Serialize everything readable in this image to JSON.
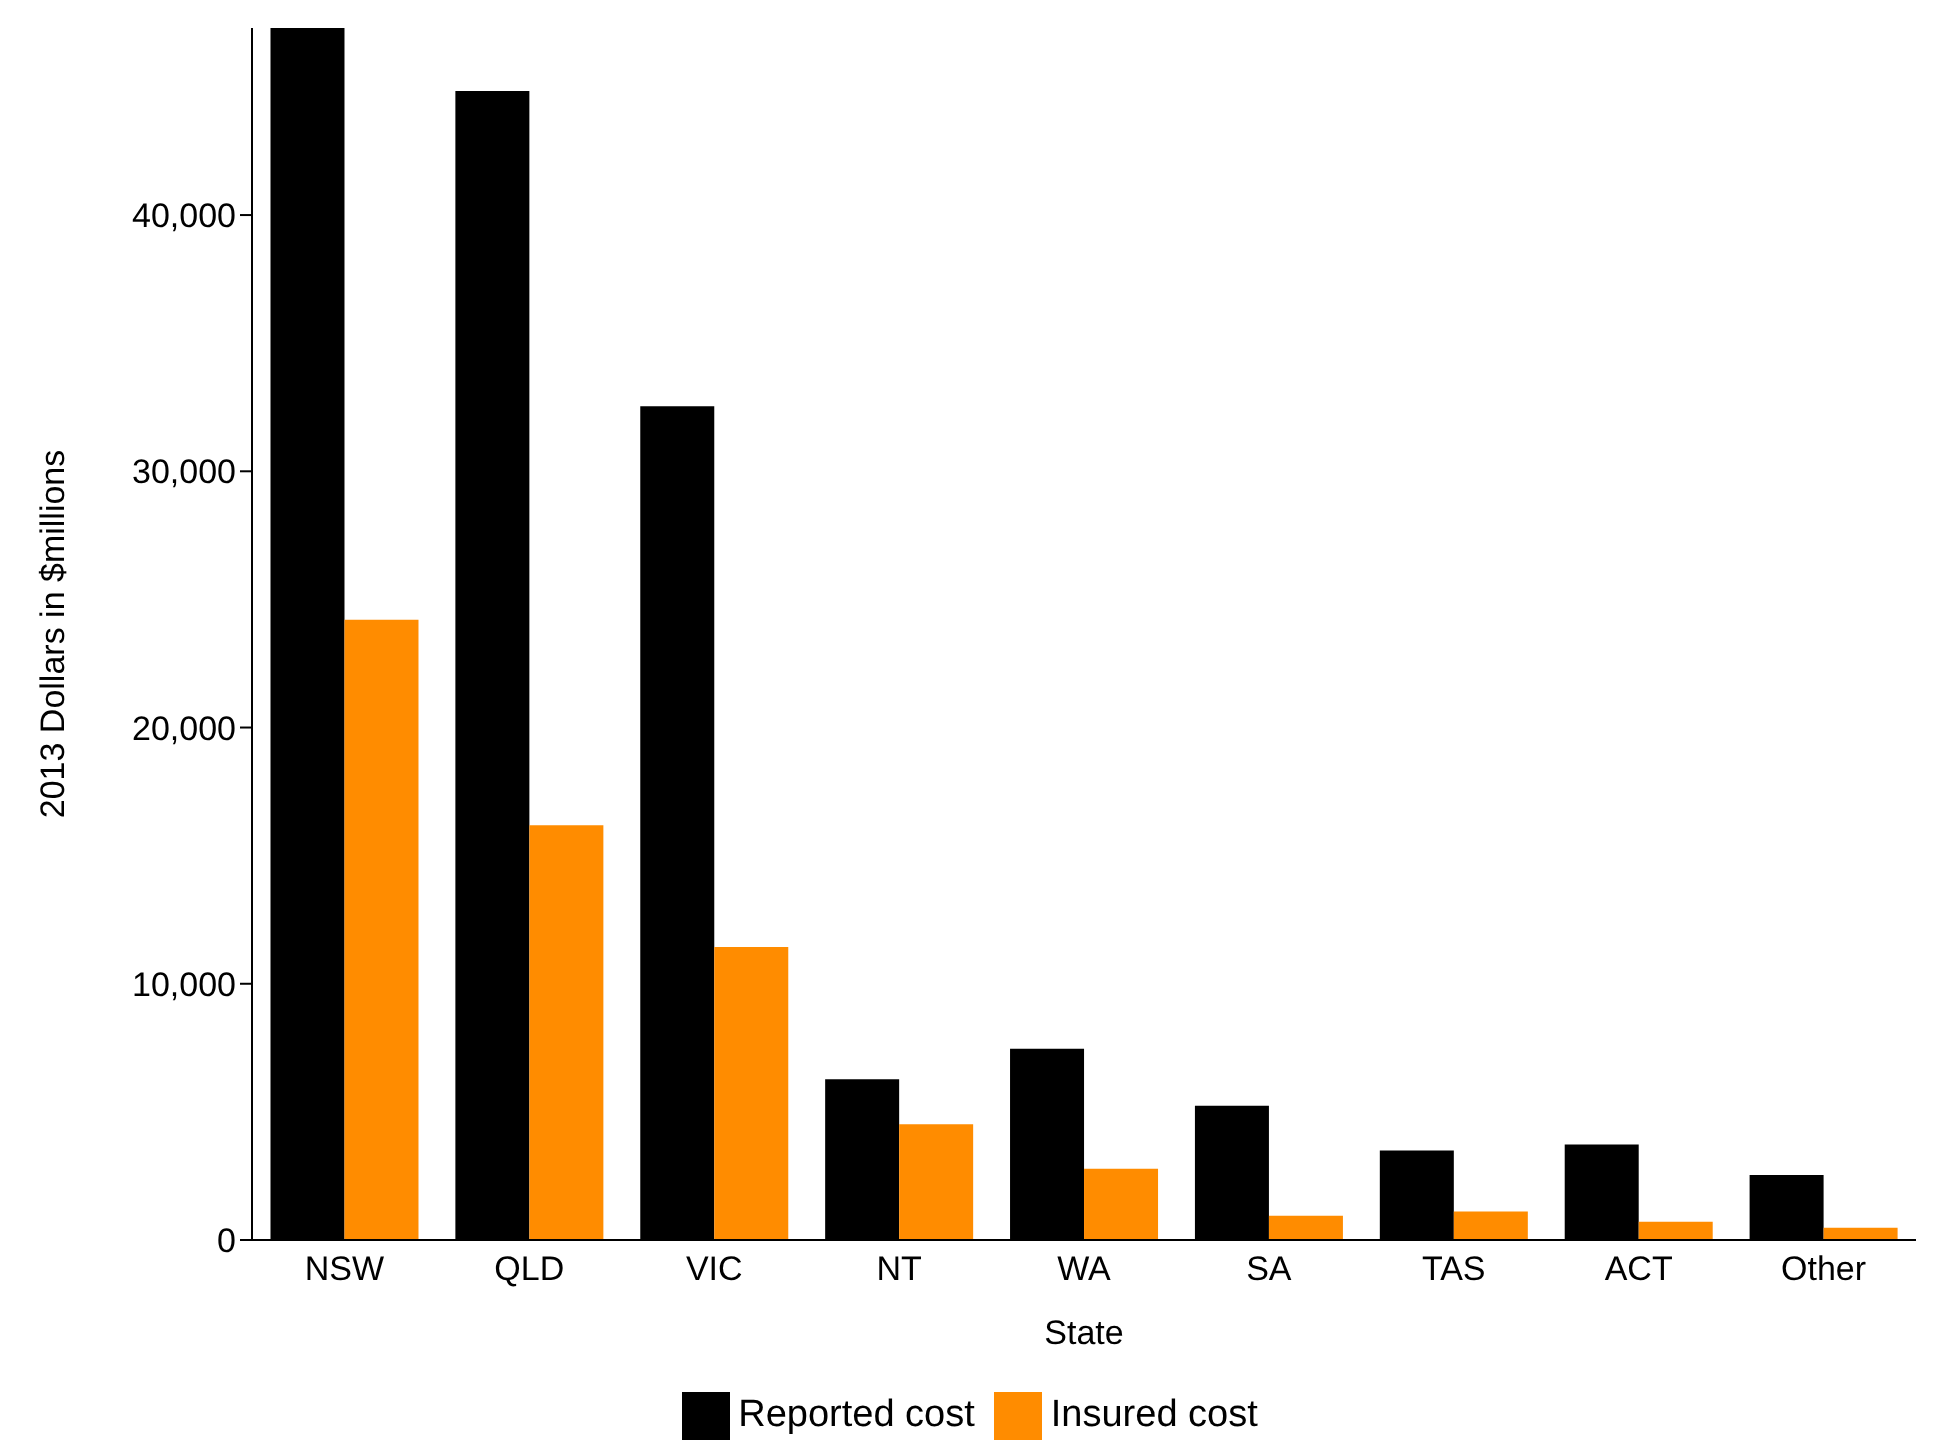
{
  "chart_data": {
    "type": "bar",
    "xlabel": "State",
    "ylabel": "2013 Dollars in $millions",
    "categories": [
      "NSW",
      "QLD",
      "VIC",
      "NT",
      "WA",
      "SA",
      "TAS",
      "ACT",
      "Other"
    ],
    "series": [
      {
        "name": "Reported cost",
        "color": "#000000",
        "values": [
          47300,
          44840,
          32540,
          6270,
          7460,
          5240,
          3490,
          3730,
          2540
        ]
      },
      {
        "name": "Insured cost",
        "color": "#ff8c00",
        "values": [
          24210,
          16190,
          11430,
          4520,
          2780,
          950,
          1110,
          710,
          480
        ]
      }
    ],
    "ylim": [
      0,
      47300
    ],
    "yticks": [
      0,
      {
        "value": 10000,
        "label": "10,000"
      },
      {
        "value": 20000,
        "label": "20,000"
      },
      {
        "value": 30000,
        "label": "30,000"
      },
      {
        "value": 40000,
        "label": "40,000"
      }
    ],
    "grid": false,
    "legend": "bottom"
  }
}
